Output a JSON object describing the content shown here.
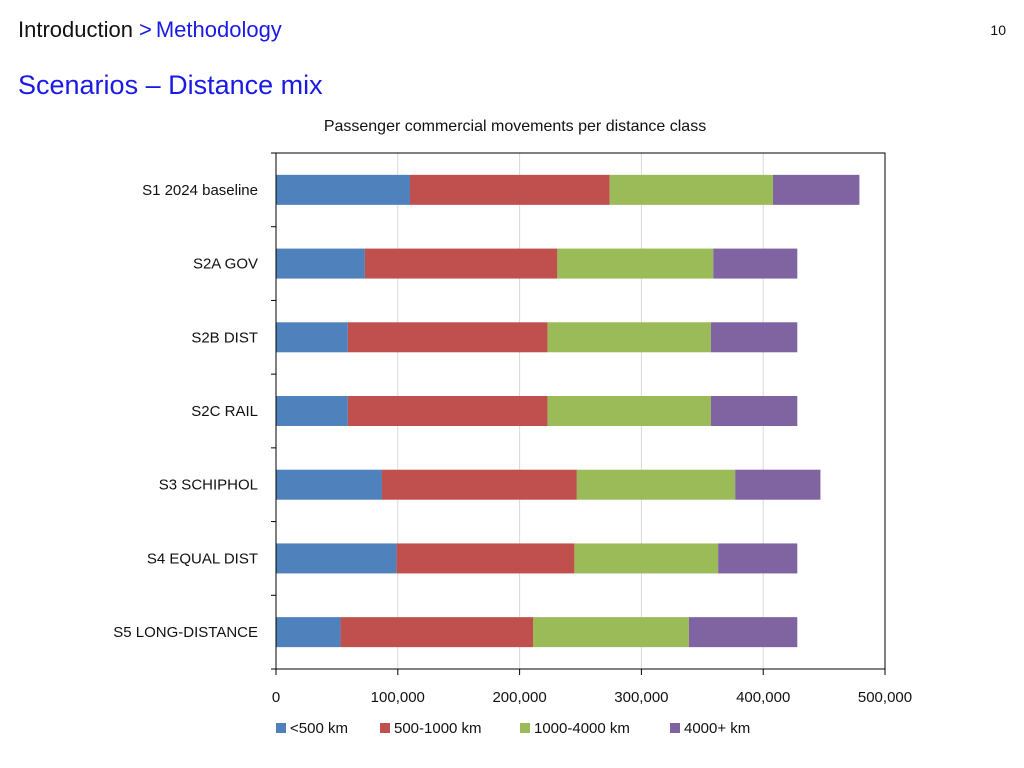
{
  "header": {
    "breadcrumb_root": "Introduction",
    "breadcrumb_separator": ">",
    "breadcrumb_current": "Methodology",
    "page_number": "10",
    "slide_title": "Scenarios – Distance mix"
  },
  "colors": {
    "accent_blue": "#1a1ae6"
  },
  "chart_data": {
    "type": "bar",
    "orientation": "horizontal",
    "stacked": true,
    "title": "Passenger commercial movements per distance class",
    "xlabel": "",
    "ylabel": "",
    "categories": [
      "S1 2024 baseline",
      "S2A GOV",
      "S2B DIST",
      "S2C RAIL",
      "S3 SCHIPHOL",
      "S4 EQUAL DIST",
      "S5 LONG-DISTANCE"
    ],
    "series": [
      {
        "name": "<500 km",
        "color": "#4f81bd",
        "values": [
          110000,
          73000,
          59000,
          59000,
          87000,
          99000,
          53000
        ]
      },
      {
        "name": "500-1000 km",
        "color": "#c0504d",
        "values": [
          164000,
          158000,
          164000,
          164000,
          160000,
          146000,
          158000
        ]
      },
      {
        "name": "1000-4000 km",
        "color": "#9bbb59",
        "values": [
          134000,
          128000,
          134000,
          134000,
          130000,
          118000,
          128000
        ]
      },
      {
        "name": "4000+ km",
        "color": "#8064a2",
        "values": [
          71000,
          69000,
          71000,
          71000,
          70000,
          65000,
          89000
        ]
      }
    ],
    "xlim": [
      0,
      500000
    ],
    "xticks": [
      0,
      100000,
      200000,
      300000,
      400000,
      500000
    ],
    "xtick_labels": [
      "0",
      "100,000",
      "200,000",
      "300,000",
      "400,000",
      "500,000"
    ],
    "grid": "vertical",
    "legend_position": "bottom"
  }
}
